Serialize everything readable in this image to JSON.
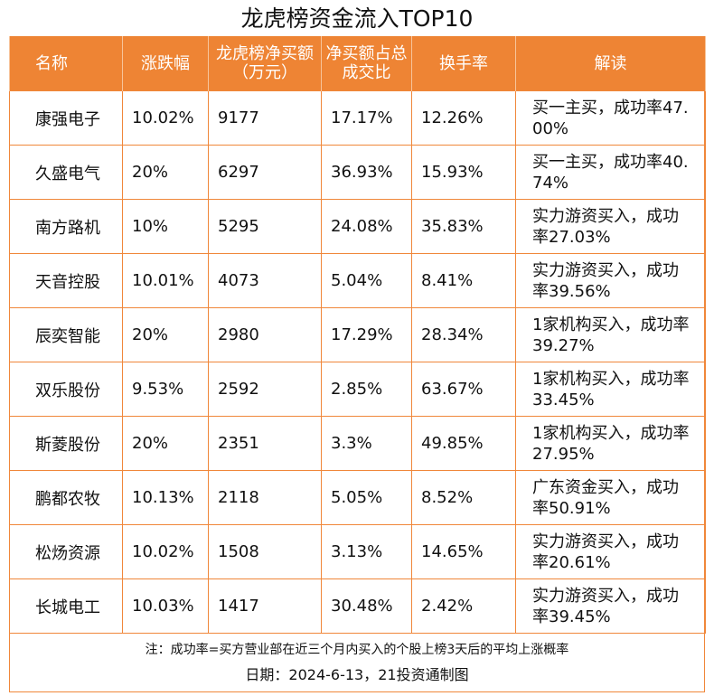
{
  "title": "龙虎榜资金流入TOP10",
  "columns": [
    "名称",
    "涨跌幅",
    "龙虎榜净买额（万元）",
    "净买额占总成交比",
    "换手率",
    "解读"
  ],
  "rows": [
    {
      "name": "康强电子",
      "change": "10.02%",
      "net_buy": "9177",
      "ratio": "17.17%",
      "turnover": "12.26%",
      "interp": "买一主买，成功率47.00%"
    },
    {
      "name": "久盛电气",
      "change": "20%",
      "net_buy": "6297",
      "ratio": "36.93%",
      "turnover": "15.93%",
      "interp": "买一主买，成功率40.74%"
    },
    {
      "name": "南方路机",
      "change": "10%",
      "net_buy": "5295",
      "ratio": "24.08%",
      "turnover": "35.83%",
      "interp": "实力游资买入，成功率27.03%"
    },
    {
      "name": "天音控股",
      "change": "10.01%",
      "net_buy": "4073",
      "ratio": "5.04%",
      "turnover": "8.41%",
      "interp": "实力游资买入，成功率39.56%"
    },
    {
      "name": "辰奕智能",
      "change": "20%",
      "net_buy": "2980",
      "ratio": "17.29%",
      "turnover": "28.34%",
      "interp": "1家机构买入，成功率39.27%"
    },
    {
      "name": "双乐股份",
      "change": "9.53%",
      "net_buy": "2592",
      "ratio": "2.85%",
      "turnover": "63.67%",
      "interp": "1家机构买入，成功率33.45%"
    },
    {
      "name": "斯菱股份",
      "change": "20%",
      "net_buy": "2351",
      "ratio": "3.3%",
      "turnover": "49.85%",
      "interp": "1家机构买入，成功率27.95%"
    },
    {
      "name": "鹏都农牧",
      "change": "10.13%",
      "net_buy": "2118",
      "ratio": "5.05%",
      "turnover": "8.52%",
      "interp": "广东资金买入，成功率50.91%"
    },
    {
      "name": "松炀资源",
      "change": "10.02%",
      "net_buy": "1508",
      "ratio": "3.13%",
      "turnover": "14.65%",
      "interp": "实力游资买入，成功率20.61%"
    },
    {
      "name": "长城电工",
      "change": "10.03%",
      "net_buy": "1417",
      "ratio": "30.48%",
      "turnover": "2.42%",
      "interp": "实力游资买入，成功率39.45%"
    }
  ],
  "footnote": "注：成功率=买方营业部在近三个月内买入的个股上榜3天后的平均上涨概率",
  "date_line": "日期：2024-6-13，21投资通制图",
  "colors": {
    "header_bg": "#ee8434",
    "border": "#f0873a"
  }
}
